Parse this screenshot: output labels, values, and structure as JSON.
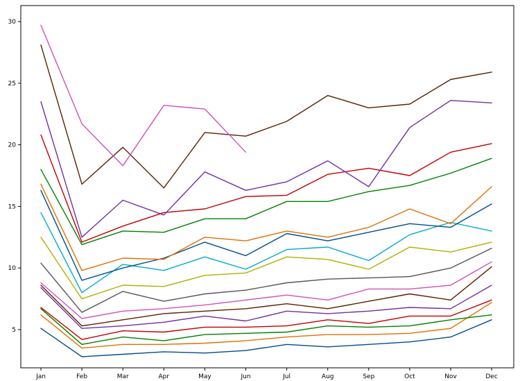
{
  "chart_data": {
    "type": "line",
    "title": "",
    "xlabel": "",
    "ylabel": "",
    "x": [
      "Jan",
      "Feb",
      "Mar",
      "Apr",
      "May",
      "Jun",
      "Jul",
      "Aug",
      "Sep",
      "Oct",
      "Nov",
      "Dec"
    ],
    "ylim": [
      1.9,
      31.3
    ],
    "yticks": [
      5,
      10,
      15,
      20,
      25,
      30
    ],
    "grid": false,
    "series": [
      {
        "color": "#004c8c",
        "values": [
          5.1,
          2.8,
          3.0,
          3.2,
          3.1,
          3.3,
          3.8,
          3.6,
          3.8,
          4.0,
          4.4,
          5.8
        ]
      },
      {
        "color": "#e07000",
        "values": [
          6.2,
          3.5,
          3.8,
          3.8,
          3.9,
          4.1,
          4.4,
          4.6,
          4.6,
          4.7,
          5.1,
          7.2
        ]
      },
      {
        "color": "#008000",
        "values": [
          6.7,
          3.8,
          4.4,
          4.1,
          4.6,
          4.7,
          4.8,
          5.3,
          5.2,
          5.3,
          5.8,
          6.2
        ]
      },
      {
        "color": "#c00000",
        "values": [
          6.8,
          4.2,
          4.9,
          4.8,
          5.2,
          5.2,
          5.3,
          5.8,
          5.5,
          6.1,
          6.1,
          7.4
        ]
      },
      {
        "color": "#7030a0",
        "values": [
          8.4,
          5.1,
          5.3,
          5.6,
          6.1,
          5.7,
          6.5,
          6.3,
          6.5,
          6.8,
          6.7,
          8.6
        ]
      },
      {
        "color": "#5a2000",
        "values": [
          8.6,
          5.3,
          5.8,
          6.3,
          6.5,
          6.7,
          7.1,
          6.7,
          7.3,
          7.9,
          7.4,
          10.1
        ]
      },
      {
        "color": "#d050b8",
        "values": [
          8.8,
          5.9,
          6.5,
          6.7,
          7.0,
          7.4,
          7.8,
          7.4,
          8.3,
          8.3,
          8.6,
          10.5
        ]
      },
      {
        "color": "#555555",
        "values": [
          10.4,
          6.4,
          8.1,
          7.3,
          7.9,
          8.2,
          8.8,
          9.1,
          9.2,
          9.3,
          10.0,
          11.6
        ]
      },
      {
        "color": "#b0b000",
        "values": [
          12.5,
          7.5,
          8.6,
          8.5,
          9.4,
          9.6,
          10.9,
          10.7,
          9.9,
          11.7,
          11.3,
          12.1
        ]
      },
      {
        "color": "#00aacc",
        "values": [
          14.5,
          8.0,
          10.3,
          9.8,
          10.9,
          9.9,
          11.5,
          11.7,
          10.6,
          12.7,
          13.7,
          13.0
        ]
      },
      {
        "color": "#004c8c",
        "values": [
          16.3,
          9.0,
          10.0,
          10.8,
          12.1,
          11.0,
          12.8,
          12.2,
          12.9,
          13.6,
          13.3,
          15.2
        ]
      },
      {
        "color": "#e07000",
        "values": [
          16.8,
          9.8,
          10.8,
          10.7,
          12.5,
          12.2,
          13.0,
          12.5,
          13.3,
          14.8,
          13.6,
          16.6
        ]
      },
      {
        "color": "#008000",
        "values": [
          18.0,
          11.9,
          13.0,
          12.9,
          14.0,
          14.0,
          15.4,
          15.4,
          16.2,
          16.7,
          17.7,
          18.9
        ]
      },
      {
        "color": "#c00000",
        "values": [
          20.8,
          12.1,
          13.4,
          14.5,
          14.8,
          15.8,
          15.9,
          17.6,
          18.1,
          17.5,
          19.4,
          20.1
        ]
      },
      {
        "color": "#7030a0",
        "values": [
          23.5,
          12.5,
          15.5,
          14.3,
          17.8,
          16.3,
          17.0,
          18.7,
          16.6,
          21.4,
          23.6,
          23.4
        ]
      },
      {
        "color": "#5a2000",
        "values": [
          28.1,
          16.8,
          19.8,
          16.5,
          21.0,
          20.7,
          21.9,
          24.0,
          23.0,
          23.3,
          25.3,
          25.9
        ]
      },
      {
        "color": "#d050b8",
        "values": [
          29.7,
          21.7,
          18.3,
          23.2,
          22.9,
          19.4,
          null,
          null,
          null,
          null,
          null,
          null
        ]
      }
    ]
  }
}
